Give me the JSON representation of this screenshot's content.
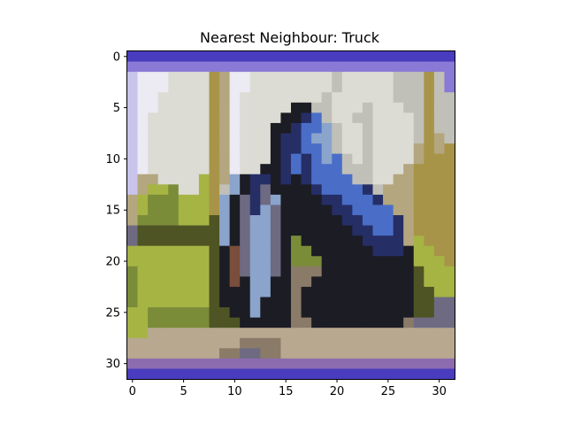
{
  "chart_data": {
    "type": "heatmap",
    "title": "Nearest Neighbour: Truck",
    "xlabel": "",
    "ylabel": "",
    "xlim": [
      -0.5,
      31.5
    ],
    "ylim": [
      31.5,
      -0.5
    ],
    "xticks": [
      0,
      5,
      10,
      15,
      20,
      25,
      30
    ],
    "yticks": [
      0,
      5,
      10,
      15,
      20,
      25,
      30
    ],
    "grid": false,
    "image_size": [
      32,
      32
    ],
    "palette": {
      "A": "#4a3cbe",
      "B": "#8a7ad6",
      "C": "#c8c4ec",
      "W": "#eceaf2",
      "L": "#dcdcd4",
      "G": "#c0c0b8",
      "T": "#b4a67e",
      "O": "#a89448",
      "Y": "#a6b444",
      "V": "#7a8c38",
      "D": "#4e5424",
      "K": "#1c1c24",
      "N": "#262e66",
      "U": "#4a6ec8",
      "S": "#8aa4cc",
      "M": "#6e6a82",
      "R": "#7a4e3c",
      "P": "#8c6cae",
      "H": "#b8a890",
      "E": "#8a7a68"
    },
    "rows": [
      "AAAAAAAAAAAAAAAAAAAAAAAAAAAAAAAA",
      "BBBBBBBBBBBBBBBBBBBBBBBBBBBBBBBB",
      "CWWWLLLLOTWWLLLLLLLLGLLLLLGGGOGB",
      "CWWWLLLLOTWWLLLLLLLLGLLLLLGGGOGB",
      "CWWLLLLLOTWLLLLLLLLGLLLLLLGGGOGG",
      "CWWLLLLLOTWLLLLLKKGGLLLGLLLGGOGG",
      "CWLLLLLLOTWLLLLKKNUGLLGGLLLLGOGG",
      "CWLLLLLLOTWLLLKKNUUSGLLGLLLLGOGG",
      "CWLLLLLLOTWLLLKNNUSSGLLGLLLLGOTG",
      "CWLLLLLLOTWLLLKNNUUSGLLGLLLLTOTO",
      "CWLLLLLLOTWLLLKNUNUSUGLGLLLLTOOO",
      "CWLLLLLLOTWLLKKNUNUUUGGGLLLTOOOO",
      "CTTLLLLYOTSKNNKNKNUUUUGGLLTTOOOO",
      "CTYYVLLYOGSKNMKKKKNUUUUNGTTTOOOO",
      "TYVVVYYYOSKMNMSKKKKNNUUUNTTTOOOO",
      "TYVVVYYYOSKMNSMKKKKKNNUUUUTTOOOO",
      "TVVVVYYYDSKMSSMKKKKKKNNUUUNTOOOO",
      "MDDDDDDDDSKMSSMKKKKKKKNNUUNTOOOO",
      "MDDDDDDDDSKMSSMKVKKKKKKNNNNTYOOO",
      "YYYYYYYYDKRMSSMKVVKKKKKKNNNKYYOO",
      "YYYYYYYYDKRMSSMKVVVKKKKKKKKKYYYO",
      "VYYYYYYYDKRMSSMKEEEKKKKKKKKKDYYY",
      "VYYYYYYYDKRKSSKKEEKKKKKKKKKKDYYY",
      "VYYYYYYYDKKKSSKKEKKKKKKKKKKKDDYY",
      "VYYYYYYYDKKKSKKKEKKKKKKKKKKKDDMM",
      "YYVVVVVVDDKKSKKKEKKKKKKKKKKKDDMM",
      "YYVVVVVVDDDKKKKKEEKKKKKKKKKEMMMM",
      "YYHHHHHHHHHHHHHHHHHHHHHHHHHHHHHH",
      "HHHHHHHHHHHEEEEHHHHHHHHHHHHHHHHH",
      "HHHHHHHHHEEMMEEHHHHHHHHHHHHHHHHH",
      "PPPPPPPPPPPPPPPPPPPPPPPPPPPPPPPP",
      "AAAAAAAAAAAAAAAAAAAAAAAAAAAAAAAA"
    ]
  }
}
